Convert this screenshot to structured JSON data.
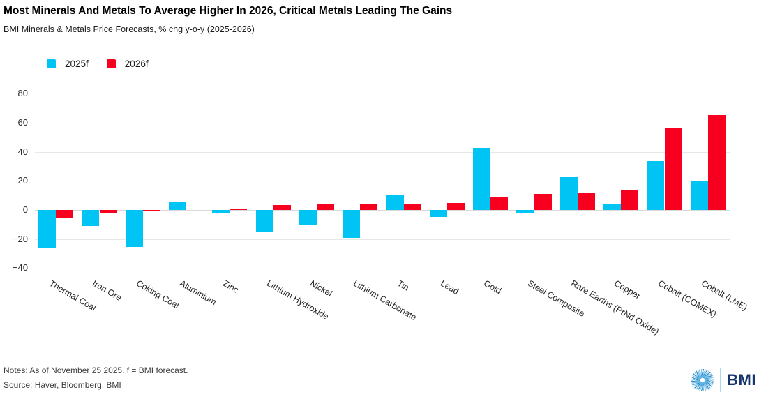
{
  "header": {
    "title": "Most Minerals And Metals To Average Higher In 2026, Critical Metals Leading The Gains",
    "subtitle": "BMI Minerals & Metals Price Forecasts, % chg y-o-y (2025-2026)"
  },
  "footer": {
    "notes": "Notes: As of November 25 2025. f = BMI forecast.",
    "source": "Source: Haver, Bloomberg, BMI",
    "logo_text": "BMI"
  },
  "colors": {
    "series_2025": "#00c4f4",
    "series_2026": "#f7001f",
    "gridline": "#e7e7e7",
    "logo_navy": "#16356d",
    "logo_blue": "#2e8fcc",
    "logo_light_blue": "#7fc4e8"
  },
  "chart_data": {
    "type": "bar",
    "title": "Most Minerals And Metals To Average Higher In 2026, Critical Metals Leading The Gains",
    "subtitle": "BMI Minerals & Metals Price Forecasts, % chg y-o-y (2025-2026)",
    "xlabel": "",
    "ylabel": "% chg y-o-y",
    "ylim": [
      -40,
      85
    ],
    "yticks": [
      80,
      60,
      40,
      20,
      0,
      -20,
      -40
    ],
    "grid": true,
    "legend_position": "top-left",
    "categories": [
      "Thermal Coal",
      "Iron Ore",
      "Coking Coal",
      "Aluminium",
      "Zinc",
      "Lithium Hydroxide",
      "Nickel",
      "Lithium Carbonate",
      "Tin",
      "Lead",
      "Gold",
      "Steel Composite",
      "Rare Earths (PrNd Oxide)",
      "Copper",
      "Cobalt (COMEX)",
      "Cobalt (LME)"
    ],
    "series": [
      {
        "name": "2025f",
        "color": "#00c4f4",
        "values": [
          -26.5,
          -11,
          -25.5,
          5.5,
          -2,
          -15,
          -10,
          -19,
          10.5,
          -5,
          42.5,
          -2.5,
          22.5,
          4,
          33.5,
          20
        ]
      },
      {
        "name": "2026f",
        "color": "#f7001f",
        "values": [
          -5.5,
          -2,
          -1,
          0,
          1,
          3.5,
          4,
          4,
          4,
          5,
          8.5,
          11,
          11.5,
          13.5,
          56.5,
          65.5
        ]
      }
    ]
  }
}
